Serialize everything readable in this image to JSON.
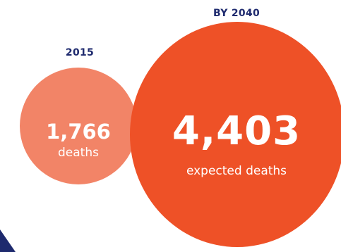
{
  "chart_data": {
    "type": "bubble",
    "categories": [
      "2015",
      "BY 2040"
    ],
    "values": [
      1766,
      4403
    ],
    "value_labels": [
      "1,766",
      "4,403"
    ],
    "captions": [
      "deaths",
      "expected deaths"
    ],
    "colors": [
      "#f28467",
      "#ee5127"
    ]
  },
  "accent_colors": {
    "heading": "#1e2a6e",
    "corner_shape": "#1e2a6e"
  }
}
